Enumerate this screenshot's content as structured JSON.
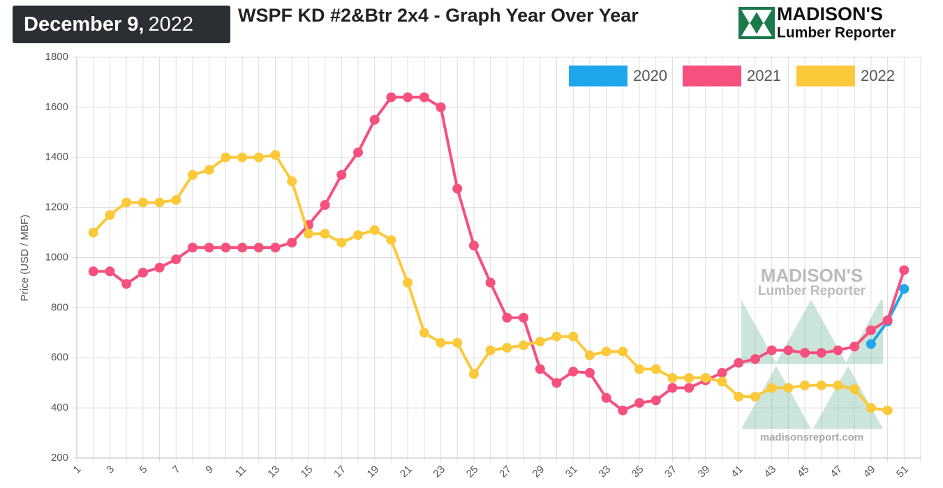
{
  "header": {
    "date_main": "December 9,",
    "date_year": "2022",
    "logo_name": "MADISON'S",
    "logo_sub": "Lumber Reporter"
  },
  "watermark": {
    "name": "MADISON'S",
    "sub": "Lumber Reporter",
    "url": "madisonsreport.com"
  },
  "chart_data": {
    "type": "line",
    "title": "WSPF KD #2&Btr 2x4 - Graph Year Over Year",
    "y_label": "Price (USD / MBF)",
    "x": [
      1,
      2,
      3,
      4,
      5,
      6,
      7,
      8,
      9,
      10,
      11,
      12,
      13,
      14,
      15,
      16,
      17,
      18,
      19,
      20,
      21,
      22,
      23,
      24,
      25,
      26,
      27,
      28,
      29,
      30,
      31,
      32,
      33,
      34,
      35,
      36,
      37,
      38,
      39,
      40,
      41,
      42,
      43,
      44,
      45,
      46,
      47,
      48,
      49,
      50,
      51,
      52
    ],
    "xlim": [
      1,
      52
    ],
    "xticks": [
      1,
      3,
      5,
      7,
      9,
      11,
      13,
      15,
      17,
      19,
      21,
      23,
      25,
      27,
      29,
      31,
      33,
      35,
      37,
      39,
      41,
      43,
      45,
      47,
      49,
      51
    ],
    "ylim": [
      200,
      1800
    ],
    "yticks": [
      200,
      400,
      600,
      800,
      1000,
      1200,
      1400,
      1600,
      1800
    ],
    "grid": true,
    "legend": "top-right",
    "series": [
      {
        "name": "2020",
        "color": "#1ea7ea",
        "values": [
          null,
          null,
          null,
          null,
          null,
          null,
          null,
          null,
          null,
          null,
          null,
          null,
          null,
          null,
          null,
          null,
          null,
          null,
          null,
          null,
          null,
          null,
          null,
          null,
          null,
          null,
          null,
          null,
          null,
          null,
          null,
          null,
          null,
          null,
          null,
          null,
          null,
          null,
          null,
          null,
          null,
          null,
          null,
          null,
          null,
          null,
          null,
          null,
          655,
          745,
          875,
          null
        ]
      },
      {
        "name": "2021",
        "color": "#f5507e",
        "values": [
          null,
          945,
          945,
          895,
          940,
          960,
          993,
          1040,
          1040,
          1040,
          1040,
          1040,
          1040,
          1060,
          1130,
          1210,
          1330,
          1420,
          1550,
          1640,
          1640,
          1640,
          1600,
          1275,
          1048,
          900,
          760,
          760,
          555,
          500,
          545,
          540,
          440,
          390,
          420,
          430,
          480,
          480,
          510,
          540,
          580,
          595,
          630,
          630,
          620,
          620,
          630,
          645,
          710,
          750,
          950,
          null
        ]
      },
      {
        "name": "2022",
        "color": "#fbc93a",
        "values": [
          null,
          1100,
          1170,
          1220,
          1220,
          1220,
          1230,
          1330,
          1350,
          1400,
          1400,
          1400,
          1410,
          1305,
          1095,
          1095,
          1060,
          1090,
          1110,
          1070,
          900,
          700,
          660,
          660,
          535,
          630,
          640,
          650,
          665,
          685,
          685,
          610,
          625,
          625,
          555,
          555,
          520,
          520,
          520,
          505,
          445,
          445,
          480,
          480,
          490,
          490,
          490,
          475,
          400,
          390,
          null,
          null
        ]
      }
    ]
  }
}
